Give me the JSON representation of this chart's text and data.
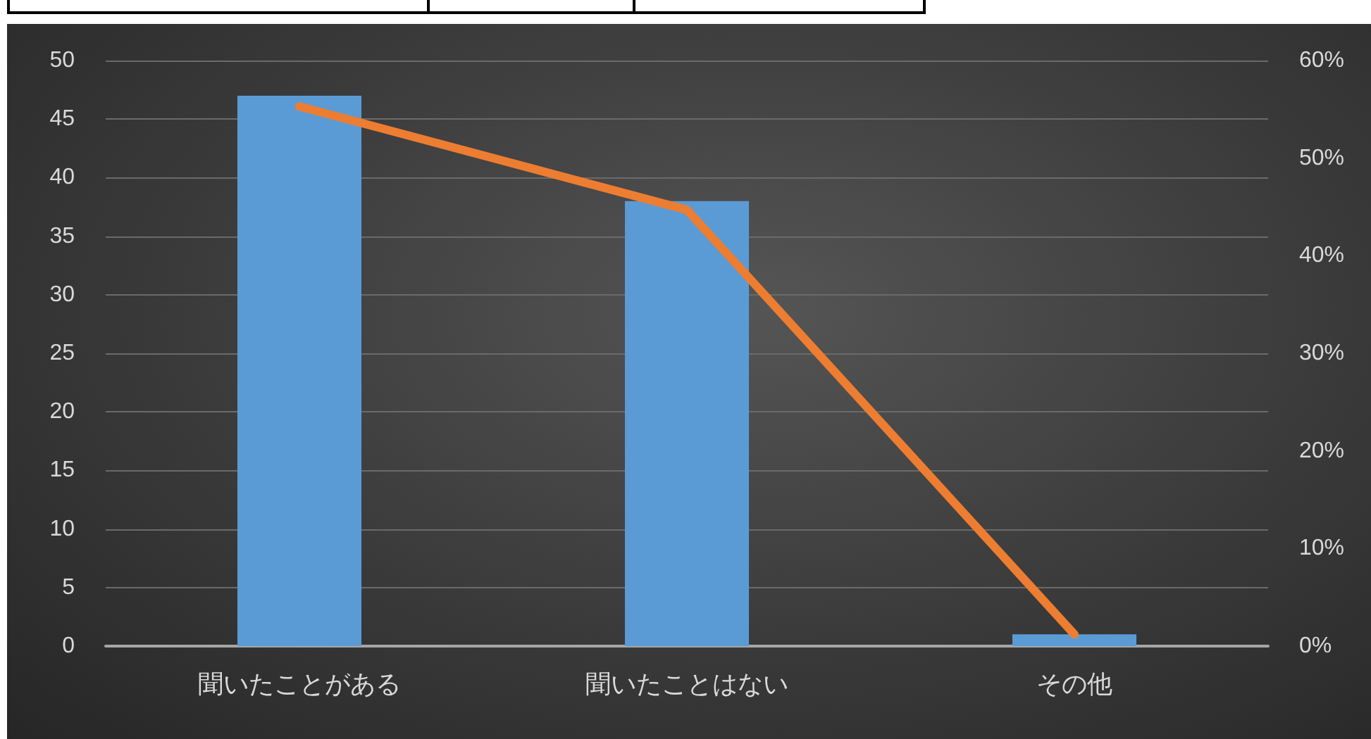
{
  "chart_data": {
    "type": "bar",
    "categories": [
      "聞いたことがある",
      "聞いたことはない",
      "その他"
    ],
    "series": [
      {
        "color": "#5b9bd5",
        "values": [
          47,
          38,
          1
        ]
      },
      {
        "type": "line",
        "axis": "y2",
        "color": "#ed7d31",
        "values": [
          55.3,
          44.7,
          1.2
        ]
      }
    ],
    "ylim": [
      0,
      50
    ],
    "yticks": [
      0,
      5,
      10,
      15,
      20,
      25,
      30,
      35,
      40,
      45,
      50
    ],
    "y2lim": [
      0,
      60
    ],
    "y2ticks": [
      {
        "value": 0,
        "label": "0%"
      },
      {
        "value": 10,
        "label": "10%"
      },
      {
        "value": 20,
        "label": "20%"
      },
      {
        "value": 30,
        "label": "30%"
      },
      {
        "value": 40,
        "label": "40%"
      },
      {
        "value": 50,
        "label": "50%"
      },
      {
        "value": 60,
        "label": "60%"
      }
    ],
    "grid": "y",
    "marker": "none",
    "line_style": "solid"
  }
}
